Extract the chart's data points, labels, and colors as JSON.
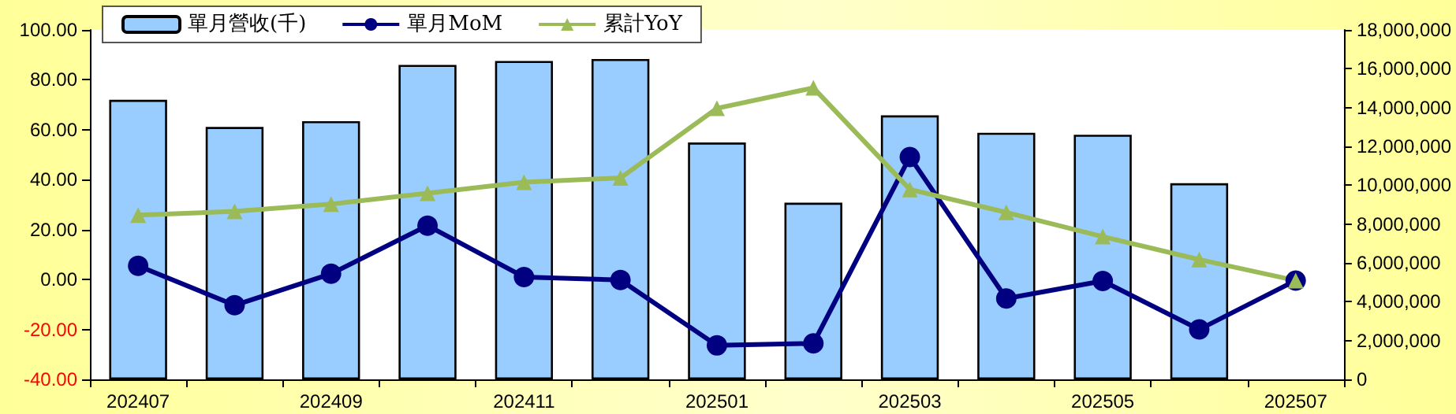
{
  "chart_data": {
    "type": "bar",
    "categories": [
      "202407",
      null,
      "202409",
      null,
      "202411",
      null,
      "202501",
      null,
      "202503",
      null,
      "202505",
      null,
      "202507"
    ],
    "series": [
      {
        "name": "單月營收(千)",
        "axis": "y2",
        "color": "#99ccff",
        "values": [
          14400000,
          13000000,
          13300000,
          16200000,
          16400000,
          16500000,
          12200000,
          9100000,
          13600000,
          12700000,
          12600000,
          10100000,
          null
        ]
      },
      {
        "name": "單月MoM",
        "type": "line",
        "marker": "circle",
        "color": "#000080",
        "values": [
          5.5,
          -10.3,
          2.3,
          21.6,
          1.0,
          -0.2,
          -26.4,
          -25.6,
          49.1,
          -7.6,
          -0.6,
          -20.0,
          -0.4
        ]
      },
      {
        "name": "累計YoY",
        "type": "line",
        "marker": "triangle",
        "color": "#9bbb59",
        "values": [
          25.8,
          27.3,
          30.2,
          34.6,
          39.0,
          40.7,
          68.6,
          76.8,
          36.1,
          26.9,
          17.2,
          8.0,
          -0.4
        ]
      }
    ],
    "ylim": [
      -40,
      100
    ],
    "yticks": [
      {
        "value": -40,
        "label": "-40.00"
      },
      {
        "value": -20,
        "label": "-20.00"
      },
      {
        "value": 0,
        "label": "0.00"
      },
      {
        "value": 20,
        "label": "20.00"
      },
      {
        "value": 40,
        "label": "40.00"
      },
      {
        "value": 60,
        "label": "60.00"
      },
      {
        "value": 80,
        "label": "80.00"
      },
      {
        "value": 100,
        "label": "100.00"
      }
    ],
    "y2lim": [
      0,
      18000000
    ],
    "y2ticks": [
      0,
      {
        "value": 2000000,
        "label": "2,000,000"
      },
      {
        "value": 4000000,
        "label": "4,000,000"
      },
      {
        "value": 6000000,
        "label": "6,000,000"
      },
      {
        "value": 8000000,
        "label": "8,000,000"
      },
      {
        "value": 10000000,
        "label": "10,000,000"
      },
      {
        "value": 12000000,
        "label": "12,000,000"
      },
      {
        "value": 14000000,
        "label": "14,000,000"
      },
      {
        "value": 16000000,
        "label": "16,000,000"
      },
      {
        "value": 18000000,
        "label": "18,000,000"
      }
    ],
    "legend": "top left",
    "grid": false
  }
}
